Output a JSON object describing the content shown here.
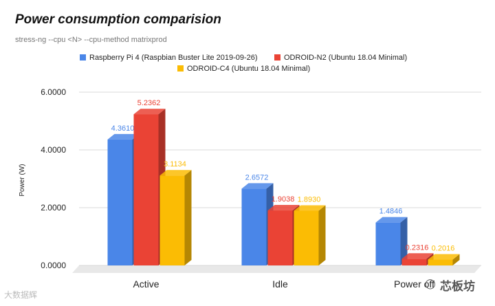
{
  "header": {
    "title": "Power consumption comparision",
    "subtitle": "stress-ng --cpu <N> --cpu-method matrixprod"
  },
  "watermarks": {
    "left_text": "大数据辉",
    "right_text": "芯板坊",
    "right_icon": "chat-bubble-icon"
  },
  "chart_data": {
    "type": "bar",
    "style": "3d",
    "categories": [
      "Active",
      "Idle",
      "Power off"
    ],
    "series": [
      {
        "name": "Raspberry Pi 4 (Raspbian Buster Lite 2019-09-26)",
        "color": "#4a86e8",
        "values": [
          4.361,
          2.6572,
          1.4846
        ],
        "labels": [
          "4.3610",
          "2.6572",
          "1.4846"
        ]
      },
      {
        "name": "ODROID-N2 (Ubuntu 18.04 Minimal)",
        "color": "#ea4335",
        "values": [
          5.2362,
          1.9038,
          0.2316
        ],
        "labels": [
          "5.2362",
          "1.9038",
          "0.2316"
        ]
      },
      {
        "name": "ODROID-C4 (Ubuntu 18.04 Minimal)",
        "color": "#fbbc04",
        "values": [
          3.1134,
          1.893,
          0.2016
        ],
        "labels": [
          "3.1134",
          "1.8930",
          "0.2016"
        ]
      }
    ],
    "ylabel": "Power (W)",
    "xlabel": "",
    "ylim": [
      0,
      6
    ],
    "yticks": [
      0,
      2,
      4,
      6
    ],
    "ytick_labels": [
      "0.0000",
      "2.0000",
      "4.0000",
      "6.0000"
    ],
    "legend_position": "top",
    "grid": true
  }
}
